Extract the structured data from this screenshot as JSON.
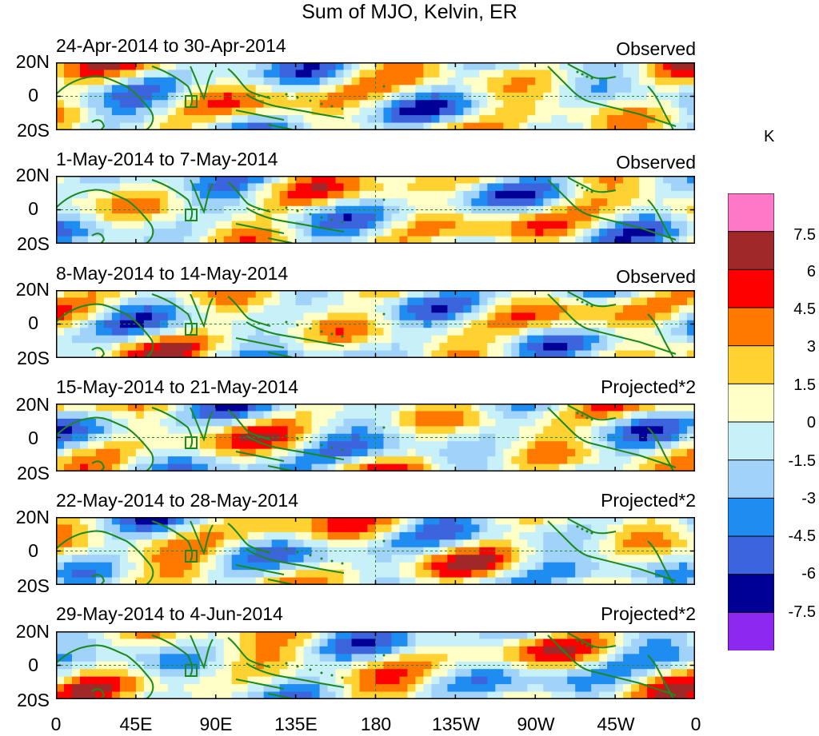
{
  "title": "Sum of MJO, Kelvin, ER",
  "panels": [
    {
      "date_range": "24-Apr-2014 to 30-Apr-2014",
      "status": "Observed"
    },
    {
      "date_range": "1-May-2014 to 7-May-2014",
      "status": "Observed"
    },
    {
      "date_range": "8-May-2014 to 14-May-2014",
      "status": "Observed"
    },
    {
      "date_range": "15-May-2014 to 21-May-2014",
      "status": "Projected*2"
    },
    {
      "date_range": "22-May-2014 to 28-May-2014",
      "status": "Projected*2"
    },
    {
      "date_range": "29-May-2014 to 4-Jun-2014",
      "status": "Projected*2"
    }
  ],
  "lat_labels": [
    "20N",
    "0",
    "20S"
  ],
  "lon_labels": [
    "0",
    "45E",
    "90E",
    "135E",
    "180",
    "135W",
    "90W",
    "45W",
    "0"
  ],
  "colorbar": {
    "unit": "K",
    "levels": [
      "7.5",
      "6",
      "4.5",
      "3",
      "1.5",
      "0",
      "-1.5",
      "-3",
      "-4.5",
      "-6",
      "-7.5"
    ],
    "colors": [
      "#ff78c8",
      "#a02828",
      "#ff0000",
      "#ff7800",
      "#ffd232",
      "#ffffc8",
      "#c8f0f8",
      "#a0d2fa",
      "#1e8cf0",
      "#3c64dc",
      "#000096",
      "#8c28f0"
    ]
  },
  "theme": {
    "coast_color": "#1a8a1a",
    "guide_color": "#2a8a2a"
  }
}
